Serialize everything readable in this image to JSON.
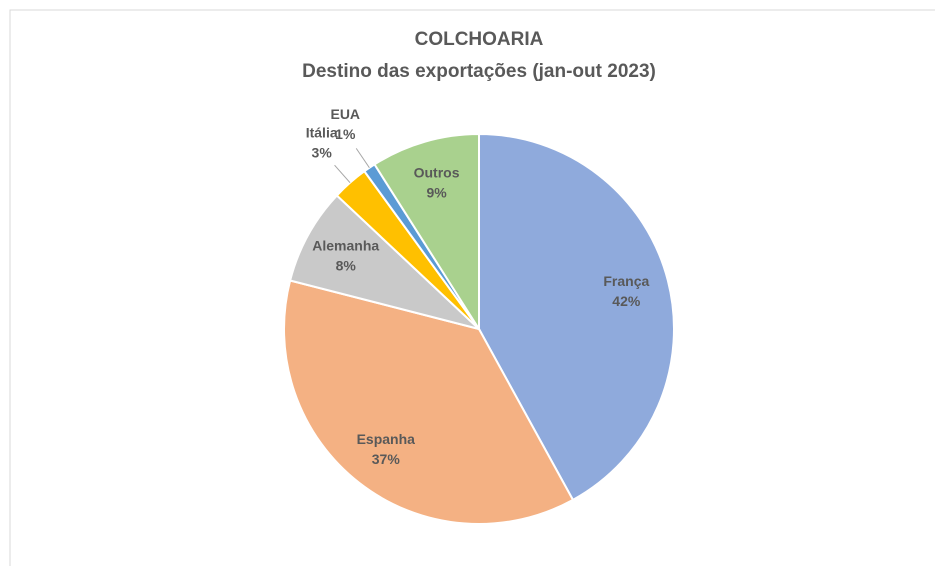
{
  "chart_data": {
    "type": "pie",
    "title": "COLCHOARIA",
    "subtitle": "Destino das exportações (jan-out 2023)",
    "categories": [
      "França",
      "Espanha",
      "Alemanha",
      "Itália",
      "EUA",
      "Outros"
    ],
    "values": [
      42,
      37,
      8,
      3,
      1,
      9
    ],
    "value_labels": [
      "42%",
      "37%",
      "8%",
      "3%",
      "1%",
      "9%"
    ],
    "colors": [
      "#8faadc",
      "#f4b183",
      "#c9c9c9",
      "#ffc000",
      "#5b9bd5",
      "#a9d18e"
    ]
  }
}
